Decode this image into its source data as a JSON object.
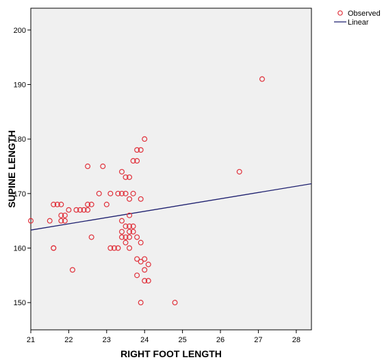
{
  "chart_data": {
    "type": "scatter",
    "title": "",
    "xlabel": "RIGHT FOOT LENGTH",
    "ylabel": "SUPINE LENGTH",
    "xlim": [
      21,
      28.4
    ],
    "ylim": [
      145,
      204
    ],
    "xticks": [
      "21",
      "22",
      "23",
      "24",
      "25",
      "26",
      "27",
      "28"
    ],
    "yticks": [
      "150",
      "160",
      "170",
      "180",
      "190",
      "200"
    ],
    "grid": false,
    "legend_position": "top-right",
    "colors": {
      "observed": "#e0303a",
      "linear": "#1c1e6e",
      "plot_background": "#f0f0f0"
    },
    "series": [
      {
        "name": "Observed",
        "kind": "points",
        "points": [
          [
            21.0,
            165
          ],
          [
            21.5,
            165
          ],
          [
            21.6,
            160
          ],
          [
            21.6,
            160
          ],
          [
            21.6,
            168
          ],
          [
            21.7,
            168
          ],
          [
            21.8,
            168
          ],
          [
            21.8,
            166
          ],
          [
            21.8,
            165
          ],
          [
            21.9,
            166
          ],
          [
            21.9,
            165
          ],
          [
            22.0,
            167
          ],
          [
            22.1,
            156
          ],
          [
            22.2,
            167
          ],
          [
            22.3,
            167
          ],
          [
            22.4,
            167
          ],
          [
            22.5,
            168
          ],
          [
            22.5,
            167
          ],
          [
            22.5,
            175
          ],
          [
            22.6,
            168
          ],
          [
            22.6,
            162
          ],
          [
            22.8,
            170
          ],
          [
            22.9,
            175
          ],
          [
            23.0,
            168
          ],
          [
            23.1,
            170
          ],
          [
            23.1,
            160
          ],
          [
            23.2,
            160
          ],
          [
            23.3,
            160
          ],
          [
            23.3,
            170
          ],
          [
            23.4,
            170
          ],
          [
            23.4,
            174
          ],
          [
            23.4,
            165
          ],
          [
            23.4,
            163
          ],
          [
            23.4,
            162
          ],
          [
            23.5,
            173
          ],
          [
            23.5,
            170
          ],
          [
            23.5,
            164
          ],
          [
            23.5,
            162
          ],
          [
            23.5,
            161
          ],
          [
            23.6,
            173
          ],
          [
            23.6,
            169
          ],
          [
            23.6,
            166
          ],
          [
            23.6,
            164
          ],
          [
            23.6,
            163
          ],
          [
            23.6,
            162
          ],
          [
            23.6,
            160
          ],
          [
            23.7,
            176
          ],
          [
            23.7,
            170
          ],
          [
            23.7,
            164
          ],
          [
            23.7,
            163
          ],
          [
            23.8,
            178
          ],
          [
            23.8,
            176
          ],
          [
            23.8,
            162
          ],
          [
            23.8,
            158
          ],
          [
            23.8,
            155
          ],
          [
            23.9,
            178
          ],
          [
            23.9,
            169
          ],
          [
            23.9,
            161
          ],
          [
            23.9,
            157.5
          ],
          [
            23.9,
            150
          ],
          [
            24.0,
            180
          ],
          [
            24.0,
            158
          ],
          [
            24.0,
            156
          ],
          [
            24.0,
            154
          ],
          [
            24.1,
            157
          ],
          [
            24.1,
            154
          ],
          [
            24.8,
            150
          ],
          [
            26.5,
            174
          ],
          [
            27.1,
            191
          ]
        ]
      },
      {
        "name": "Linear",
        "kind": "line",
        "points": [
          [
            21.0,
            163.3
          ],
          [
            28.4,
            171.8
          ]
        ]
      }
    ]
  }
}
